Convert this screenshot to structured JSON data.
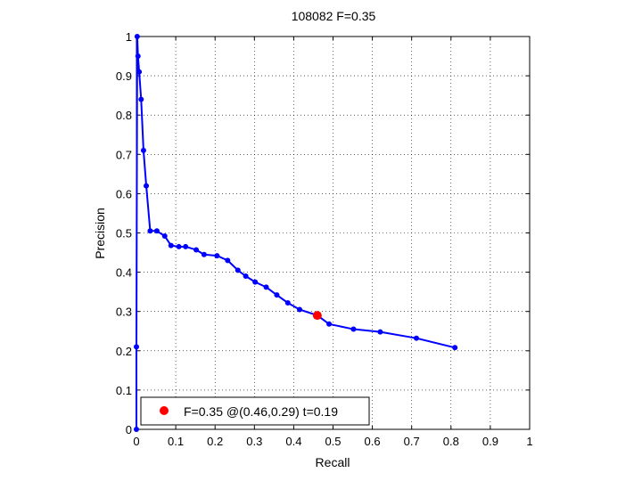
{
  "chart_data": {
    "type": "line",
    "title": "108082 F=0.35",
    "xlabel": "Recall",
    "ylabel": "Precision",
    "xlim": [
      0,
      1
    ],
    "ylim": [
      0,
      1
    ],
    "grid": true,
    "xticks": [
      "0",
      "0.1",
      "0.2",
      "0.3",
      "0.4",
      "0.5",
      "0.6",
      "0.7",
      "0.8",
      "0.9",
      "1"
    ],
    "yticks": [
      "0",
      "0.1",
      "0.2",
      "0.3",
      "0.4",
      "0.5",
      "0.6",
      "0.7",
      "0.8",
      "0.9",
      "1"
    ],
    "series": [
      {
        "color": "#0000ff",
        "points": [
          [
            0.0,
            0.0
          ],
          [
            0.0,
            0.21
          ],
          [
            0.002,
            1.0
          ],
          [
            0.004,
            0.95
          ],
          [
            0.007,
            0.91
          ],
          [
            0.012,
            0.84
          ],
          [
            0.018,
            0.71
          ],
          [
            0.025,
            0.62
          ],
          [
            0.035,
            0.505
          ],
          [
            0.052,
            0.505
          ],
          [
            0.072,
            0.492
          ],
          [
            0.088,
            0.468
          ],
          [
            0.108,
            0.465
          ],
          [
            0.125,
            0.465
          ],
          [
            0.152,
            0.457
          ],
          [
            0.172,
            0.445
          ],
          [
            0.205,
            0.442
          ],
          [
            0.232,
            0.43
          ],
          [
            0.258,
            0.405
          ],
          [
            0.278,
            0.39
          ],
          [
            0.302,
            0.375
          ],
          [
            0.33,
            0.362
          ],
          [
            0.357,
            0.342
          ],
          [
            0.385,
            0.322
          ],
          [
            0.415,
            0.305
          ],
          [
            0.46,
            0.29
          ],
          [
            0.49,
            0.268
          ],
          [
            0.552,
            0.255
          ],
          [
            0.62,
            0.248
          ],
          [
            0.712,
            0.232
          ],
          [
            0.81,
            0.208
          ]
        ]
      }
    ],
    "highlight": {
      "x": 0.46,
      "y": 0.29,
      "color": "#ff0000"
    },
    "legend": {
      "text": "F=0.35 @(0.46,0.29) t=0.19",
      "placement": "bottom-left"
    }
  }
}
